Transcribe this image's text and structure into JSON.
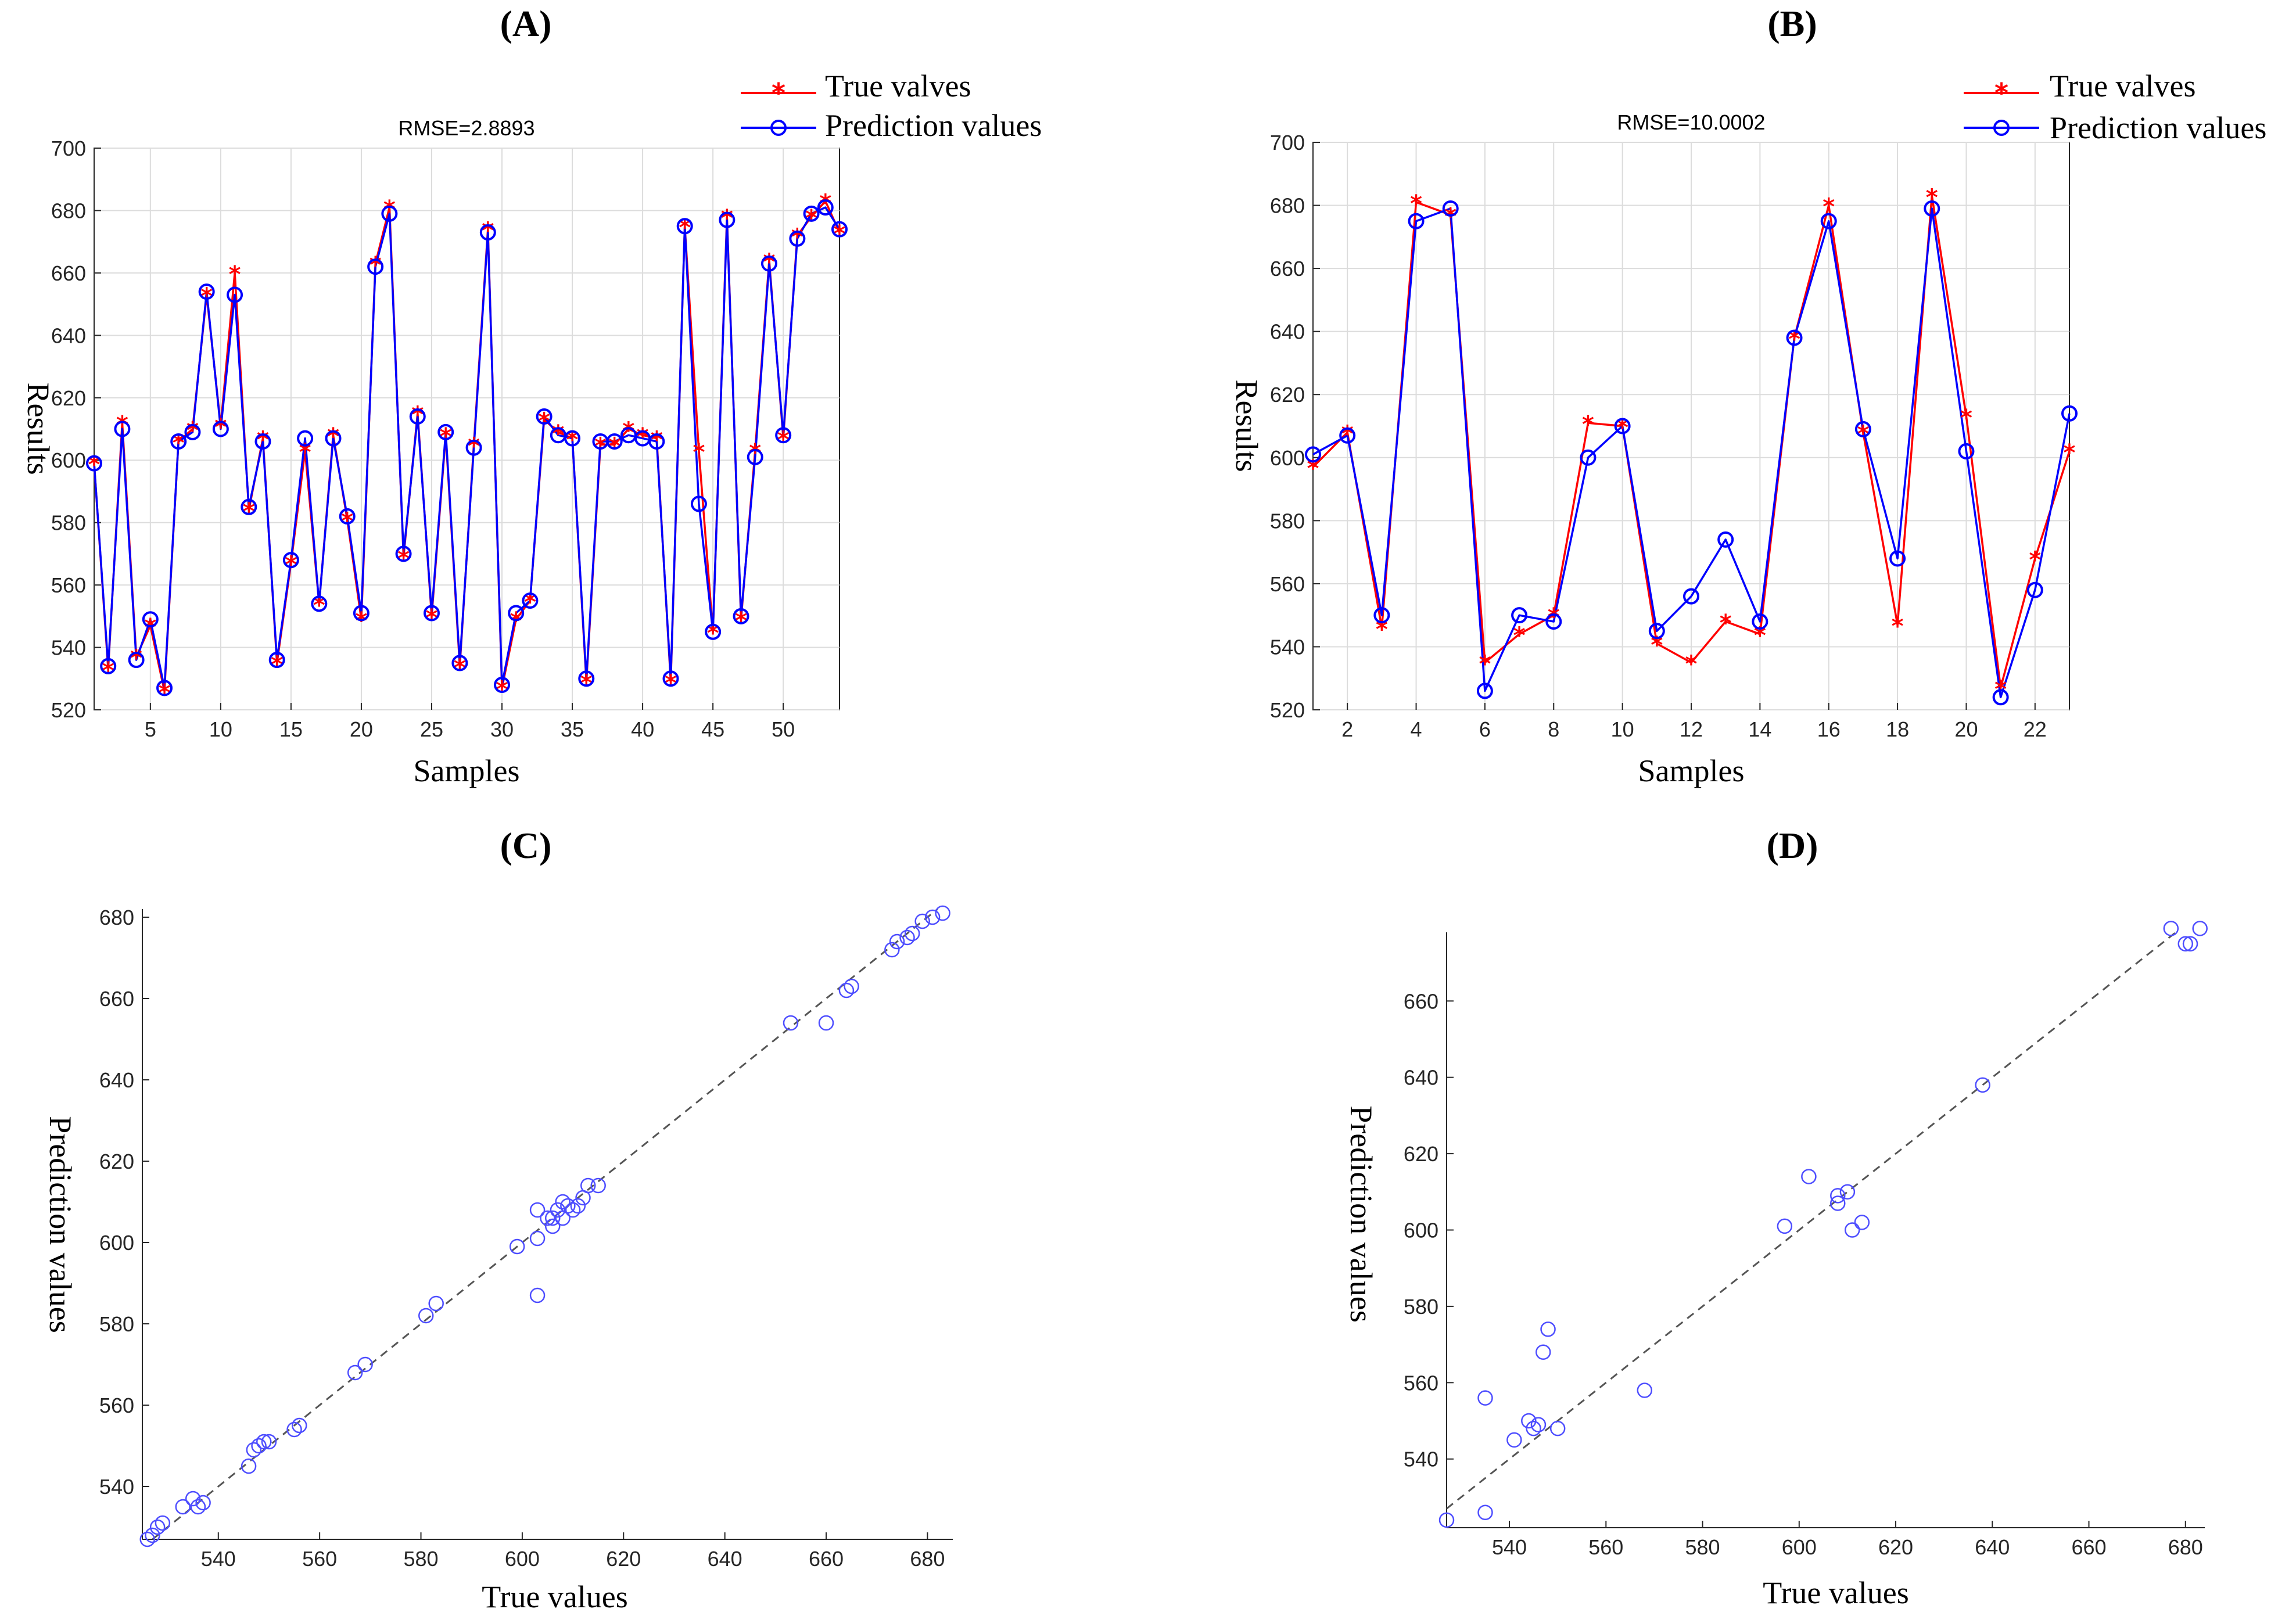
{
  "panels": [
    {
      "id": "A",
      "label": "(A)"
    },
    {
      "id": "B",
      "label": "(B)"
    },
    {
      "id": "C",
      "label": "(C)"
    },
    {
      "id": "D",
      "label": "(D)"
    }
  ],
  "legend": {
    "true_label": "True valves",
    "pred_label": "Prediction values"
  },
  "colors": {
    "true": "#ff0000",
    "pred": "#0000ff",
    "scatter": "#4d4dff",
    "diag": "#555555"
  },
  "chart_data": [
    {
      "type": "line",
      "panel": "A",
      "title": "RMSE=2.8893",
      "xlabel": "Samples",
      "ylabel": "Results",
      "xlim": [
        1,
        54
      ],
      "ylim": [
        520,
        700
      ],
      "xticks": [
        5,
        10,
        15,
        20,
        25,
        30,
        35,
        40,
        45,
        50
      ],
      "yticks": [
        520,
        540,
        560,
        580,
        600,
        620,
        640,
        660,
        680,
        700
      ],
      "grid": true,
      "legend_position": "top-right-outside",
      "series": [
        {
          "name": "True valves",
          "marker": "star",
          "values": [
            599,
            533,
            612,
            537,
            547,
            526,
            606,
            610,
            653,
            611,
            660,
            584,
            607,
            535,
            567,
            603,
            554,
            608,
            581,
            549,
            663,
            681,
            569,
            615,
            550,
            608,
            534,
            605,
            674,
            527,
            549,
            555,
            613,
            609,
            607,
            529,
            605,
            605,
            610,
            608,
            607,
            529,
            675,
            603,
            545,
            678,
            549,
            603,
            664,
            607,
            672,
            678,
            683,
            673
          ]
        },
        {
          "name": "Prediction values",
          "marker": "circle",
          "values": [
            599,
            534,
            610,
            536,
            549,
            527,
            606,
            609,
            654,
            610,
            653,
            585,
            606,
            536,
            568,
            607,
            554,
            607,
            582,
            551,
            662,
            679,
            570,
            614,
            551,
            609,
            535,
            604,
            673,
            528,
            551,
            555,
            614,
            608,
            607,
            530,
            606,
            606,
            608,
            607,
            606,
            530,
            675,
            586,
            545,
            677,
            550,
            601,
            663,
            608,
            671,
            679,
            681,
            674
          ]
        }
      ]
    },
    {
      "type": "line",
      "panel": "B",
      "title": "RMSE=10.0002",
      "xlabel": "Samples",
      "ylabel": "Results",
      "xlim": [
        1,
        23
      ],
      "ylim": [
        520,
        700
      ],
      "xticks": [
        2,
        4,
        6,
        8,
        10,
        12,
        14,
        16,
        18,
        20,
        22
      ],
      "yticks": [
        520,
        540,
        560,
        580,
        600,
        620,
        640,
        660,
        680,
        700
      ],
      "grid": true,
      "legend_position": "top-right-outside",
      "series": [
        {
          "name": "True valves",
          "marker": "star",
          "values": [
            597,
            608,
            546,
            681,
            677,
            535,
            544,
            550,
            611,
            610,
            541,
            535,
            548,
            544,
            638,
            680,
            608,
            547,
            683,
            613,
            527,
            568,
            602
          ]
        },
        {
          "name": "Prediction values",
          "marker": "circle",
          "values": [
            601,
            607,
            550,
            675,
            679,
            526,
            550,
            548,
            600,
            610,
            545,
            556,
            574,
            548,
            638,
            675,
            609,
            568,
            679,
            602,
            524,
            558,
            614
          ]
        }
      ]
    },
    {
      "type": "scatter",
      "panel": "C",
      "xlabel": "True values",
      "ylabel": "Prediction values",
      "xlim": [
        525,
        685
      ],
      "ylim": [
        527,
        682
      ],
      "xticks": [
        540,
        560,
        580,
        600,
        620,
        640,
        660,
        680
      ],
      "yticks": [
        540,
        560,
        580,
        600,
        620,
        640,
        660,
        680
      ],
      "grid": false,
      "diagonal": true,
      "points": [
        [
          526,
          527
        ],
        [
          527,
          528
        ],
        [
          528,
          530
        ],
        [
          529,
          531
        ],
        [
          533,
          535
        ],
        [
          535,
          537
        ],
        [
          536,
          535
        ],
        [
          537,
          536
        ],
        [
          546,
          545
        ],
        [
          547,
          549
        ],
        [
          548,
          550
        ],
        [
          549,
          551
        ],
        [
          550,
          551
        ],
        [
          555,
          554
        ],
        [
          556,
          555
        ],
        [
          567,
          568
        ],
        [
          569,
          570
        ],
        [
          581,
          582
        ],
        [
          583,
          585
        ],
        [
          599,
          599
        ],
        [
          603,
          601
        ],
        [
          603,
          587
        ],
        [
          603,
          608
        ],
        [
          605,
          606
        ],
        [
          606,
          606
        ],
        [
          606,
          604
        ],
        [
          607,
          608
        ],
        [
          608,
          606
        ],
        [
          608,
          610
        ],
        [
          609,
          609
        ],
        [
          610,
          608
        ],
        [
          611,
          609
        ],
        [
          612,
          611
        ],
        [
          613,
          614
        ],
        [
          615,
          614
        ],
        [
          653,
          654
        ],
        [
          660,
          654
        ],
        [
          664,
          662
        ],
        [
          665,
          663
        ],
        [
          673,
          672
        ],
        [
          674,
          674
        ],
        [
          676,
          675
        ],
        [
          677,
          676
        ],
        [
          679,
          679
        ],
        [
          681,
          680
        ],
        [
          683,
          681
        ]
      ]
    },
    {
      "type": "scatter",
      "panel": "D",
      "xlabel": "True values",
      "ylabel": "Prediction values",
      "xlim": [
        527,
        684
      ],
      "ylim": [
        522,
        678
      ],
      "xticks": [
        540,
        560,
        580,
        600,
        620,
        640,
        660,
        680
      ],
      "yticks": [
        540,
        560,
        580,
        600,
        620,
        640,
        660
      ],
      "grid": false,
      "diagonal": true,
      "points": [
        [
          527,
          524
        ],
        [
          535,
          526
        ],
        [
          535,
          556
        ],
        [
          541,
          545
        ],
        [
          544,
          550
        ],
        [
          545,
          548
        ],
        [
          546,
          549
        ],
        [
          547,
          568
        ],
        [
          548,
          574
        ],
        [
          550,
          548
        ],
        [
          568,
          558
        ],
        [
          597,
          601
        ],
        [
          602,
          614
        ],
        [
          608,
          609
        ],
        [
          608,
          607
        ],
        [
          610,
          610
        ],
        [
          611,
          600
        ],
        [
          613,
          602
        ],
        [
          638,
          638
        ],
        [
          677,
          679
        ],
        [
          680,
          675
        ],
        [
          681,
          675
        ],
        [
          683,
          679
        ]
      ]
    }
  ]
}
